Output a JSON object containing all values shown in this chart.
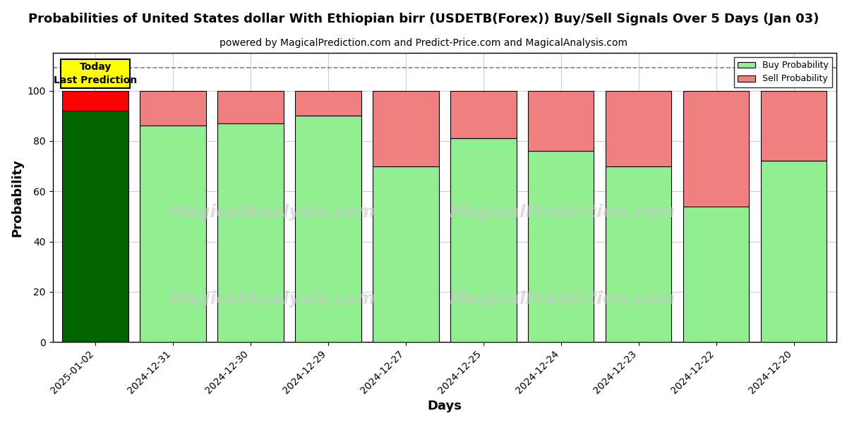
{
  "title": "Probabilities of United States dollar With Ethiopian birr (USDETB(Forex)) Buy/Sell Signals Over 5 Days (Jan 03)",
  "subtitle": "powered by MagicalPrediction.com and Predict-Price.com and MagicalAnalysis.com",
  "xlabel": "Days",
  "ylabel": "Probability",
  "categories": [
    "2025-01-02",
    "2024-12-31",
    "2024-12-30",
    "2024-12-29",
    "2024-12-27",
    "2024-12-25",
    "2024-12-24",
    "2024-12-23",
    "2024-12-22",
    "2024-12-20"
  ],
  "buy_values": [
    92,
    86,
    87,
    90,
    70,
    81,
    76,
    70,
    54,
    72
  ],
  "sell_values": [
    8,
    14,
    13,
    10,
    30,
    19,
    24,
    30,
    46,
    28
  ],
  "buy_colors": [
    "#006400",
    "#90EE90",
    "#90EE90",
    "#90EE90",
    "#90EE90",
    "#90EE90",
    "#90EE90",
    "#90EE90",
    "#90EE90",
    "#90EE90"
  ],
  "sell_colors": [
    "#FF0000",
    "#F08080",
    "#F08080",
    "#F08080",
    "#F08080",
    "#F08080",
    "#F08080",
    "#F08080",
    "#F08080",
    "#F08080"
  ],
  "today_box_color": "#FFFF00",
  "today_label": "Today\nLast Prediction",
  "legend_buy_color": "#90EE90",
  "legend_sell_color": "#F08080",
  "ylim_max": 115,
  "yticks": [
    0,
    20,
    40,
    60,
    80,
    100
  ],
  "grid_color": "#CCCCCC",
  "background_color": "#FFFFFF",
  "bar_edge_color": "#000000",
  "dashed_line_y": 109,
  "bar_width": 0.85,
  "watermark1": "MagicalAnalysis.com",
  "watermark2": "MagicalPrediction.com"
}
